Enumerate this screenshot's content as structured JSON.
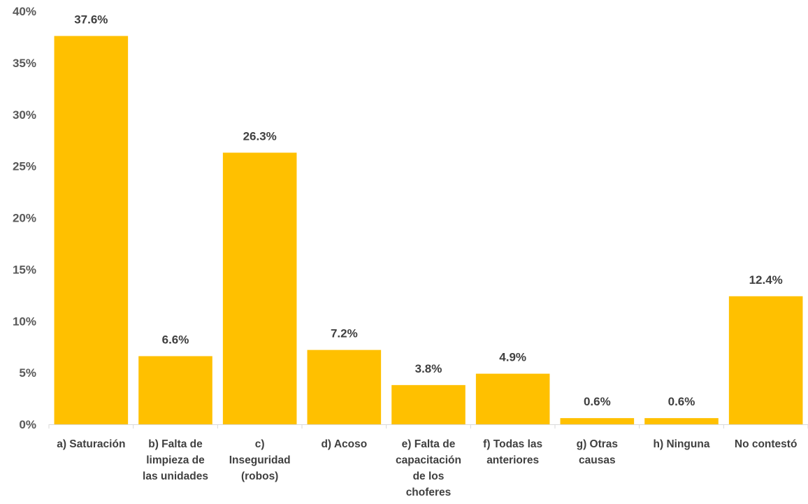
{
  "chart_data": {
    "type": "bar",
    "title": "",
    "xlabel": "",
    "ylabel": "",
    "ylim": [
      0,
      40
    ],
    "yticks": [
      "0%",
      "5%",
      "10%",
      "15%",
      "20%",
      "25%",
      "30%",
      "35%",
      "40%"
    ],
    "grid": false,
    "bar_color": "#FFC000",
    "categories": [
      [
        "a) Saturación"
      ],
      [
        "b) Falta de",
        "limpieza de",
        "las unidades"
      ],
      [
        "c)",
        "Inseguridad",
        "(robos)"
      ],
      [
        "d) Acoso"
      ],
      [
        "e) Falta de",
        "capacitación",
        "de los",
        "choferes"
      ],
      [
        "f) Todas las",
        "anteriores"
      ],
      [
        "g) Otras",
        "causas"
      ],
      [
        "h) Ninguna"
      ],
      [
        "No contestó"
      ]
    ],
    "values": [
      37.6,
      6.6,
      26.3,
      7.2,
      3.8,
      4.9,
      0.6,
      0.6,
      12.4
    ],
    "data_labels": [
      "37.6%",
      "6.6%",
      "26.3%",
      "7.2%",
      "3.8%",
      "4.9%",
      "0.6%",
      "0.6%",
      "12.4%"
    ]
  }
}
